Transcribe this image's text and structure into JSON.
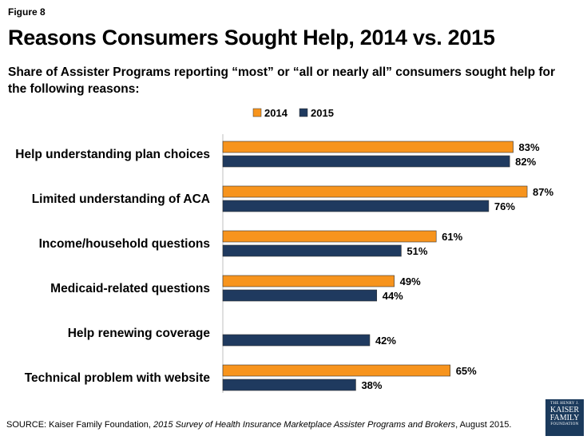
{
  "figure_label": "Figure 8",
  "chart_data": {
    "type": "bar",
    "orientation": "horizontal",
    "title": "Reasons Consumers Sought Help, 2014 vs. 2015",
    "subtitle": "Share of Assister Programs reporting “most” or “all or nearly all” consumers sought help for the following reasons:",
    "categories": [
      "Help understanding plan choices",
      "Limited understanding of ACA",
      "Income/household questions",
      "Medicaid-related questions",
      "Help renewing coverage",
      "Technical problem with website"
    ],
    "series": [
      {
        "name": "2014",
        "color": "#f7941d",
        "values": [
          83,
          87,
          61,
          49,
          null,
          65
        ],
        "labels": [
          "83%",
          "87%",
          "61%",
          "49%",
          "",
          "65%"
        ]
      },
      {
        "name": "2015",
        "color": "#1f3a5f",
        "values": [
          82,
          76,
          51,
          44,
          42,
          38
        ],
        "labels": [
          "82%",
          "76%",
          "51%",
          "44%",
          "42%",
          "38%"
        ]
      }
    ],
    "xlim": [
      0,
      100
    ],
    "legend_position": "top-center",
    "grid": false
  },
  "footer": {
    "prefix": "SOURCE: Kaiser Family Foundation, ",
    "source_title": "2015 Survey of Health Insurance Marketplace Assister Programs and Brokers",
    "suffix": ", August 2015."
  },
  "logo": {
    "line1": "THE HENRY J.",
    "line2": "KAISER",
    "line3": "FAMILY",
    "line4": "FOUNDATION"
  }
}
